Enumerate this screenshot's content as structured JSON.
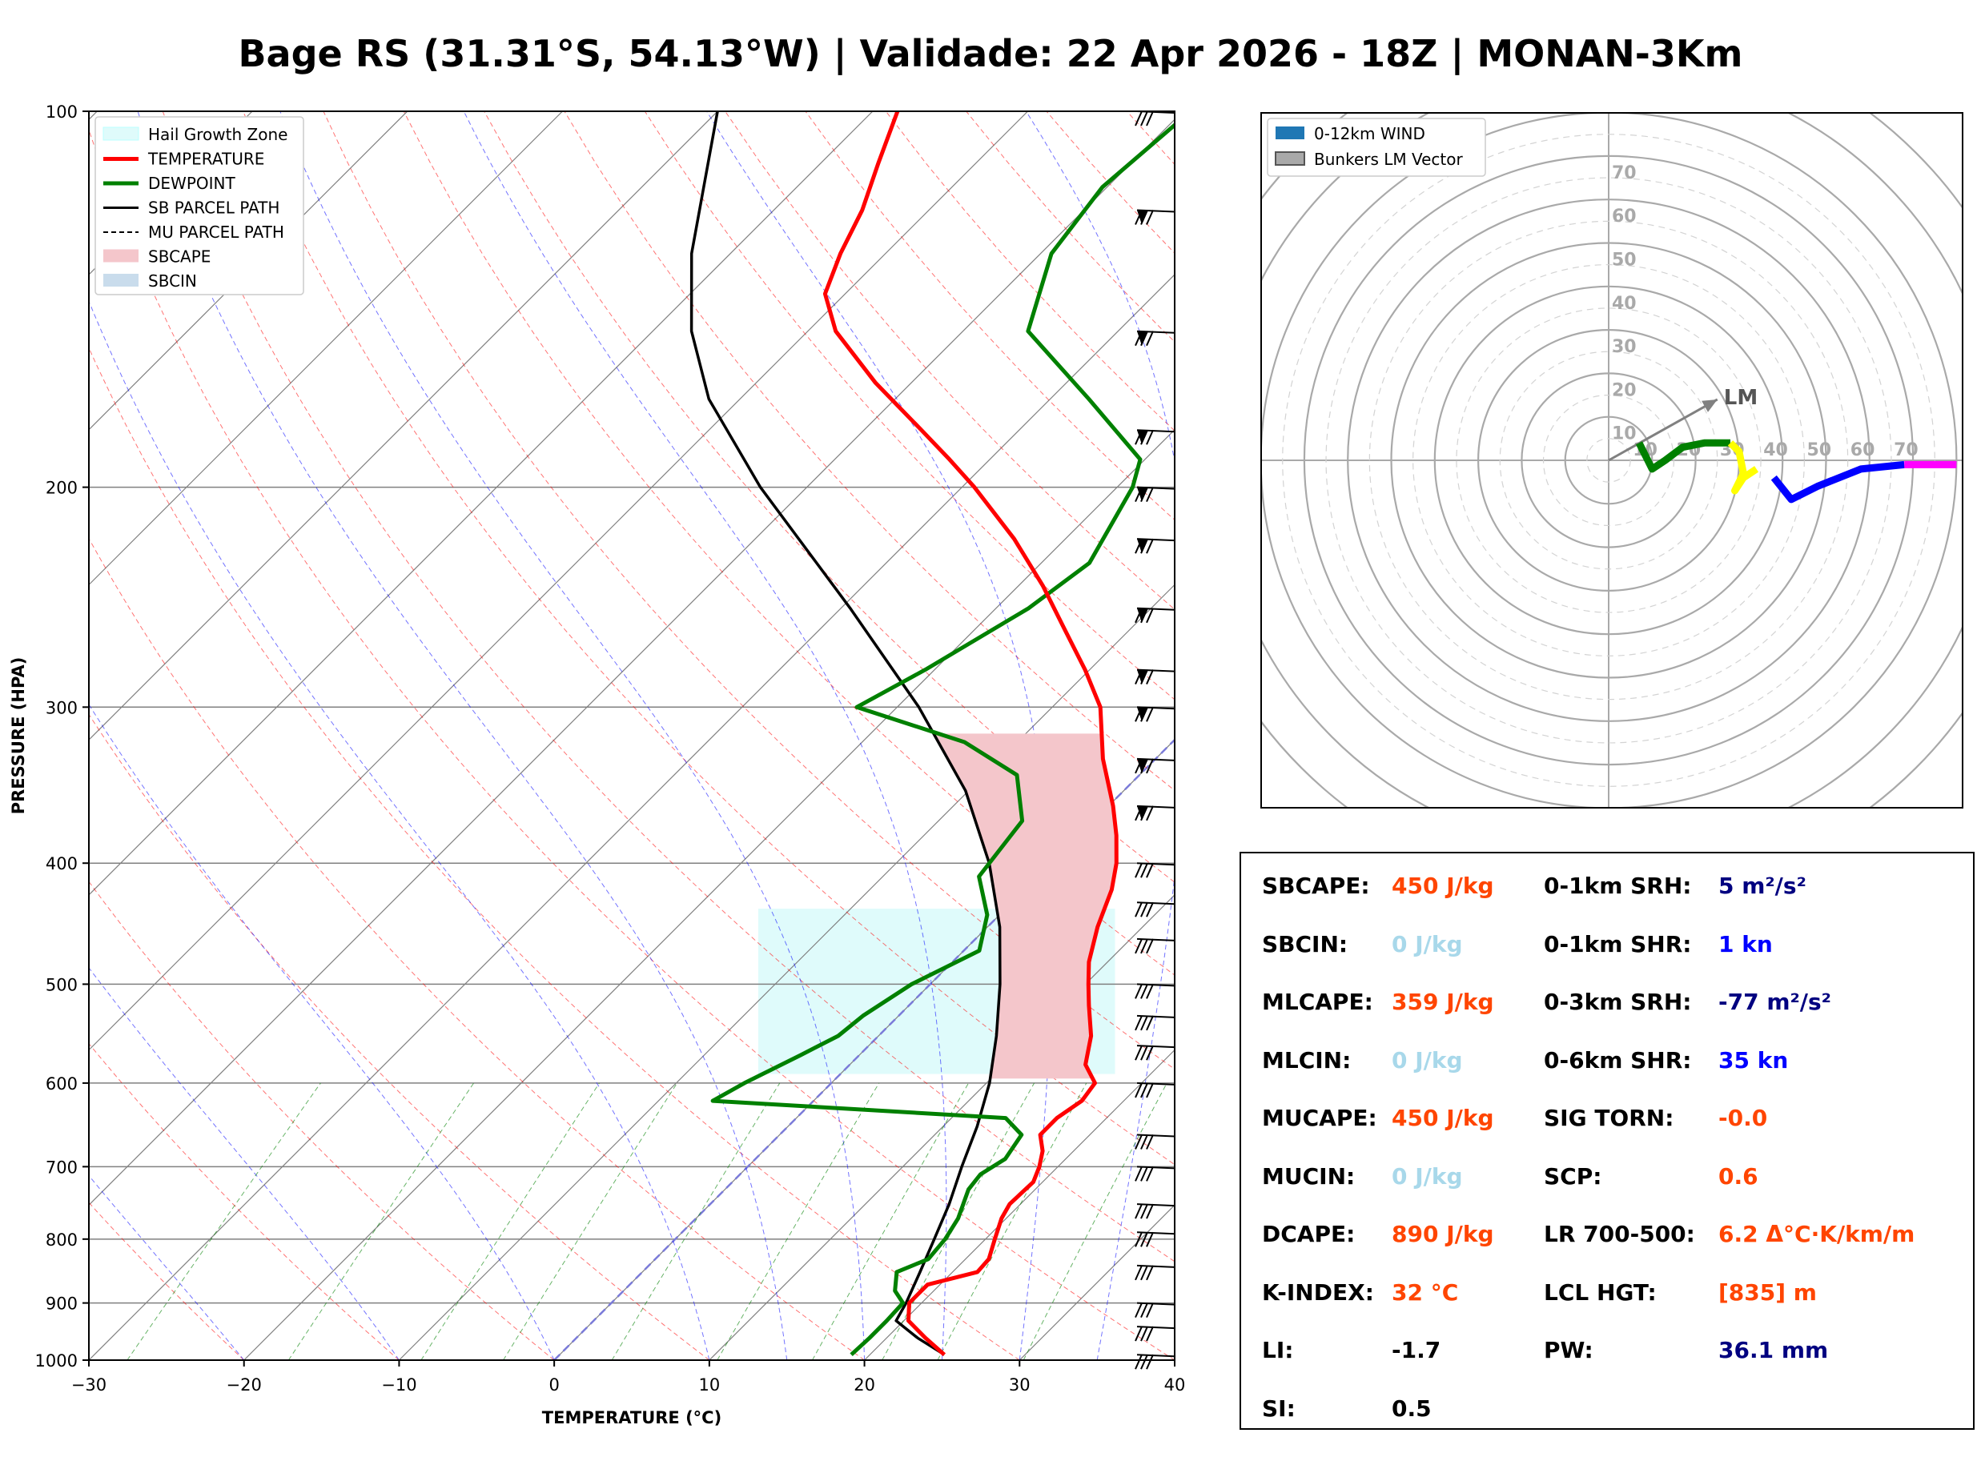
{
  "title": "Bage RS (31.31°S, 54.13°W) | Validade: 22 Apr 2026 - 18Z | MONAN-3Km",
  "colors": {
    "temperature": "#ff0000",
    "dewpoint": "#008000",
    "parcel": "#000000",
    "sbcape_fill": "#f4c6cb",
    "hail_zone": "#dffbfb",
    "dry_adiabat": "#ff0000",
    "moist_adiabat": "#0000ff",
    "mixing_ratio": "#008000",
    "isotherm": "#808080",
    "hodo_seg_0_3": "#008000",
    "hodo_seg_3_6": "#ffff00",
    "hodo_seg_6_9": "#0000ff",
    "hodo_seg_9_12": "#ff00ff",
    "hodo_ring": "#a9a9a9",
    "val_orange": "#ff4500",
    "val_lightblue": "#a8d8ea",
    "val_navy": "#000080",
    "val_blue": "#0000ff",
    "val_black": "#000000"
  },
  "chart_data": [
    {
      "type": "line",
      "name": "skew-t",
      "xlabel": "TEMPERATURE (°C)",
      "ylabel": "PRESSURE (HPA)",
      "xlim": [
        -30,
        40
      ],
      "ylim": [
        1000,
        100
      ],
      "yscale": "log",
      "skew_deg": 45,
      "xticks": [
        "−30",
        "−20",
        "−10",
        "0",
        "10",
        "20",
        "30",
        "40"
      ],
      "yticks": [
        "100",
        "200",
        "300",
        "400",
        "500",
        "600",
        "700",
        "800",
        "900",
        "1000"
      ],
      "legend_position": "top-left",
      "legend": [
        "Hail Growth Zone",
        "TEMPERATURE",
        "DEWPOINT",
        "SB PARCEL PATH",
        "MU PARCEL PATH",
        "SBCAPE",
        "SBCIN"
      ],
      "hail_growth_zone": {
        "p_bottom": 590,
        "p_top": 435
      },
      "series": [
        {
          "name": "TEMPERATURE",
          "points": [
            [
              990,
              24.8
            ],
            [
              960,
              22.5
            ],
            [
              930,
              20.3
            ],
            [
              900,
              19.2
            ],
            [
              870,
              19.2
            ],
            [
              850,
              21.6
            ],
            [
              830,
              21.5
            ],
            [
              800,
              20.6
            ],
            [
              770,
              19.7
            ],
            [
              750,
              19.3
            ],
            [
              720,
              19.4
            ],
            [
              700,
              18.8
            ],
            [
              680,
              18.0
            ],
            [
              660,
              16.8
            ],
            [
              640,
              16.8
            ],
            [
              620,
              17.3
            ],
            [
              600,
              17.0
            ],
            [
              580,
              15.2
            ],
            [
              550,
              13.7
            ],
            [
              520,
              11.6
            ],
            [
              500,
              10.2
            ],
            [
              480,
              8.8
            ],
            [
              450,
              7.1
            ],
            [
              420,
              5.6
            ],
            [
              400,
              4.2
            ],
            [
              380,
              2.4
            ],
            [
              360,
              0.3
            ],
            [
              350,
              -0.9
            ],
            [
              330,
              -3.4
            ],
            [
              300,
              -6.9
            ],
            [
              280,
              -10.3
            ],
            [
              260,
              -14.2
            ],
            [
              240,
              -18.4
            ],
            [
              220,
              -23.3
            ],
            [
              200,
              -29.2
            ],
            [
              190,
              -32.6
            ],
            [
              180,
              -36.3
            ],
            [
              165,
              -42.3
            ],
            [
              150,
              -48.2
            ],
            [
              140,
              -51.3
            ],
            [
              130,
              -52.9
            ],
            [
              120,
              -54.3
            ],
            [
              110,
              -56.3
            ],
            [
              100,
              -58.4
            ]
          ]
        },
        {
          "name": "DEWPOINT",
          "points": [
            [
              990,
              18.8
            ],
            [
              960,
              18.9
            ],
            [
              930,
              18.9
            ],
            [
              900,
              18.8
            ],
            [
              880,
              17.5
            ],
            [
              850,
              16.4
            ],
            [
              830,
              17.6
            ],
            [
              800,
              17.4
            ],
            [
              770,
              16.9
            ],
            [
              730,
              15.7
            ],
            [
              710,
              15.5
            ],
            [
              690,
              16.1
            ],
            [
              660,
              15.6
            ],
            [
              640,
              13.5
            ],
            [
              620,
              -6.5
            ],
            [
              600,
              -5.6
            ],
            [
              570,
              -3.8
            ],
            [
              550,
              -2.6
            ],
            [
              530,
              -2.3
            ],
            [
              500,
              -1.2
            ],
            [
              470,
              1.0
            ],
            [
              440,
              -0.8
            ],
            [
              410,
              -3.8
            ],
            [
              370,
              -4.6
            ],
            [
              340,
              -7.9
            ],
            [
              320,
              -13.4
            ],
            [
              300,
              -22.6
            ],
            [
              280,
              -20.6
            ],
            [
              250,
              -17.9
            ],
            [
              230,
              -16.9
            ],
            [
              200,
              -19.0
            ],
            [
              190,
              -20.3
            ],
            [
              170,
              -27.5
            ],
            [
              150,
              -35.8
            ],
            [
              130,
              -39.3
            ],
            [
              115,
              -40.3
            ],
            [
              100,
              -39.5
            ]
          ]
        },
        {
          "name": "SB PARCEL PATH",
          "points": [
            [
              990,
              24.8
            ],
            [
              960,
              22.0
            ],
            [
              930,
              19.5
            ],
            [
              900,
              19.0
            ],
            [
              850,
              17.9
            ],
            [
              800,
              16.7
            ],
            [
              750,
              15.4
            ],
            [
              700,
              13.8
            ],
            [
              650,
              12.2
            ],
            [
              600,
              10.2
            ],
            [
              550,
              7.6
            ],
            [
              500,
              4.5
            ],
            [
              450,
              0.8
            ],
            [
              400,
              -4.0
            ],
            [
              350,
              -10.2
            ],
            [
              300,
              -18.6
            ],
            [
              250,
              -29.4
            ],
            [
              200,
              -43.0
            ],
            [
              170,
              -52.0
            ],
            [
              150,
              -57.5
            ],
            [
              130,
              -62.5
            ],
            [
              100,
              -70.0
            ]
          ]
        }
      ]
    },
    {
      "type": "line",
      "name": "hodograph",
      "ring_labels": [
        "10",
        "20",
        "30",
        "40",
        "50",
        "60",
        "70"
      ],
      "legend_position": "top-left",
      "legend": [
        "0-12km WIND",
        "Bunkers LM Vector"
      ],
      "lm_label": "LM",
      "lm_vector": [
        25,
        14
      ],
      "series": [
        {
          "name": "0-3km",
          "points": [
            [
              7,
              4
            ],
            [
              9,
              0
            ],
            [
              10,
              -2
            ],
            [
              13,
              0
            ],
            [
              17,
              3
            ],
            [
              22,
              4
            ],
            [
              28,
              4
            ]
          ]
        },
        {
          "name": "3-6km",
          "points": [
            [
              28,
              4
            ],
            [
              30,
              2
            ],
            [
              31,
              -3
            ],
            [
              29,
              -7
            ],
            [
              31,
              -4
            ],
            [
              34,
              -2
            ]
          ]
        },
        {
          "name": "6-9km",
          "points": [
            [
              38,
              -4
            ],
            [
              42,
              -9
            ],
            [
              48,
              -6
            ],
            [
              58,
              -2
            ],
            [
              68,
              -1
            ]
          ]
        },
        {
          "name": "9-12km",
          "points": [
            [
              68,
              -1
            ],
            [
              74,
              -1
            ],
            [
              80,
              -1
            ]
          ]
        }
      ]
    }
  ],
  "params": {
    "left": [
      {
        "label": "SBCAPE:",
        "value": "450 J/kg",
        "color": "#ff4500"
      },
      {
        "label": "SBCIN:",
        "value": "0 J/kg",
        "color": "#a8d8ea"
      },
      {
        "label": "MLCAPE:",
        "value": "359 J/kg",
        "color": "#ff4500"
      },
      {
        "label": "MLCIN:",
        "value": "0 J/kg",
        "color": "#a8d8ea"
      },
      {
        "label": "MUCAPE:",
        "value": "450 J/kg",
        "color": "#ff4500"
      },
      {
        "label": "MUCIN:",
        "value": "0 J/kg",
        "color": "#a8d8ea"
      },
      {
        "label": "DCAPE:",
        "value": "890 J/kg",
        "color": "#ff4500"
      },
      {
        "label": "K-INDEX:",
        "value": "32 °C",
        "color": "#ff4500"
      },
      {
        "label": "LI:",
        "value": "-1.7",
        "color": "#000000"
      },
      {
        "label": "SI:",
        "value": "0.5",
        "color": "#000000"
      }
    ],
    "right": [
      {
        "label": "0-1km SRH:",
        "value": "5 m²/s²",
        "color": "#000080"
      },
      {
        "label": "0-1km SHR:",
        "value": "1 kn",
        "color": "#0000ff"
      },
      {
        "label": "0-3km SRH:",
        "value": "-77 m²/s²",
        "color": "#000080"
      },
      {
        "label": "0-6km SHR:",
        "value": "35 kn",
        "color": "#0000ff"
      },
      {
        "label": "SIG TORN:",
        "value": "-0.0",
        "color": "#ff4500"
      },
      {
        "label": "SCP:",
        "value": "0.6",
        "color": "#ff4500"
      },
      {
        "label": "LR 700-500:",
        "value": "6.2 Δ°C·K/km/m",
        "color": "#ff4500"
      },
      {
        "label": "LCL HGT:",
        "value": "[835] m",
        "color": "#ff4500"
      },
      {
        "label": "PW:",
        "value": "36.1 mm",
        "color": "#000080"
      }
    ]
  }
}
